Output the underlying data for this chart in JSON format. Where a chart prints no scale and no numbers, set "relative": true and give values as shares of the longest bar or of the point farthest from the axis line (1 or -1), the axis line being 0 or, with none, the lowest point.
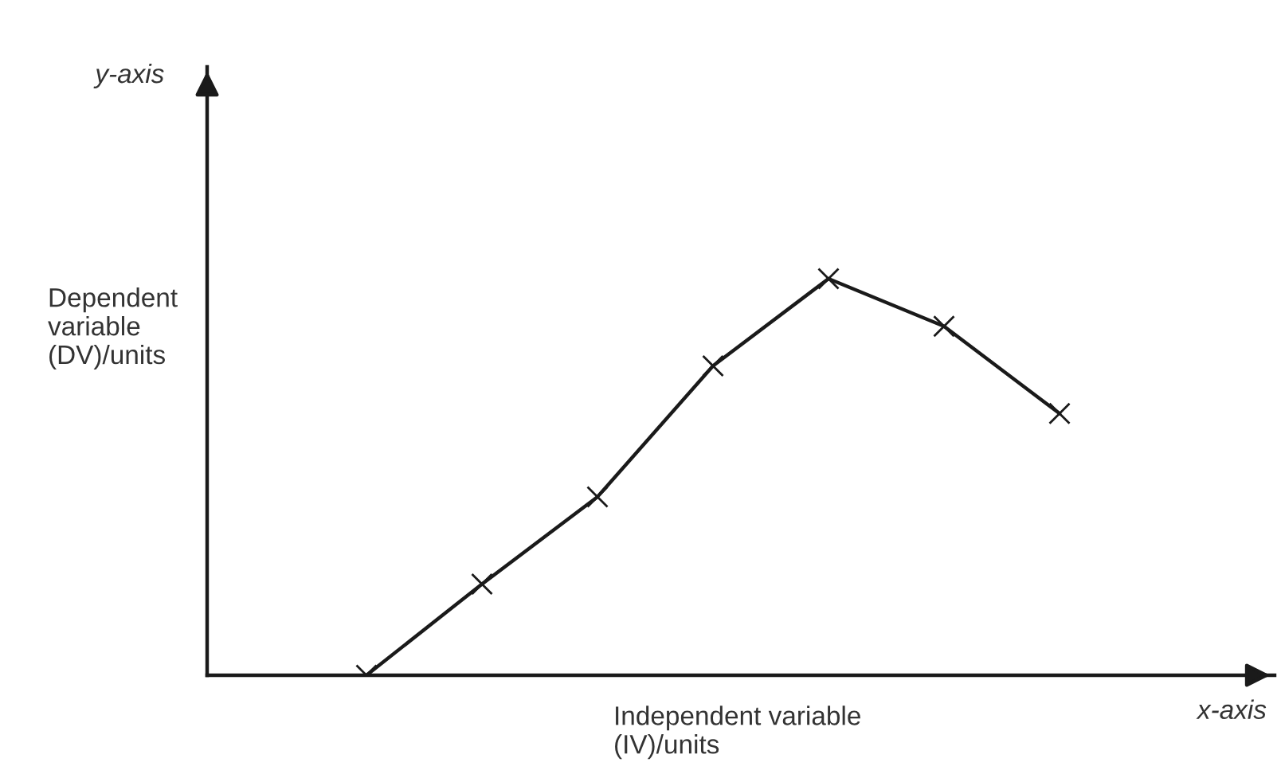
{
  "chart_data": {
    "type": "line",
    "relative": true,
    "categories": [
      null,
      null,
      null,
      null,
      null,
      null,
      null
    ],
    "values": [
      0,
      0.23,
      0.45,
      0.78,
      1,
      0.88,
      0.66
    ],
    "color": "#1a1a1a",
    "marker": "cross",
    "line_style": "solid",
    "grid": false,
    "legend": false,
    "xlabel": "Independent variable\n(IV)/units",
    "ylabel": "Dependent\nvariable\n(DV)/units",
    "annotations": [
      "y-axis",
      "x-axis"
    ]
  }
}
